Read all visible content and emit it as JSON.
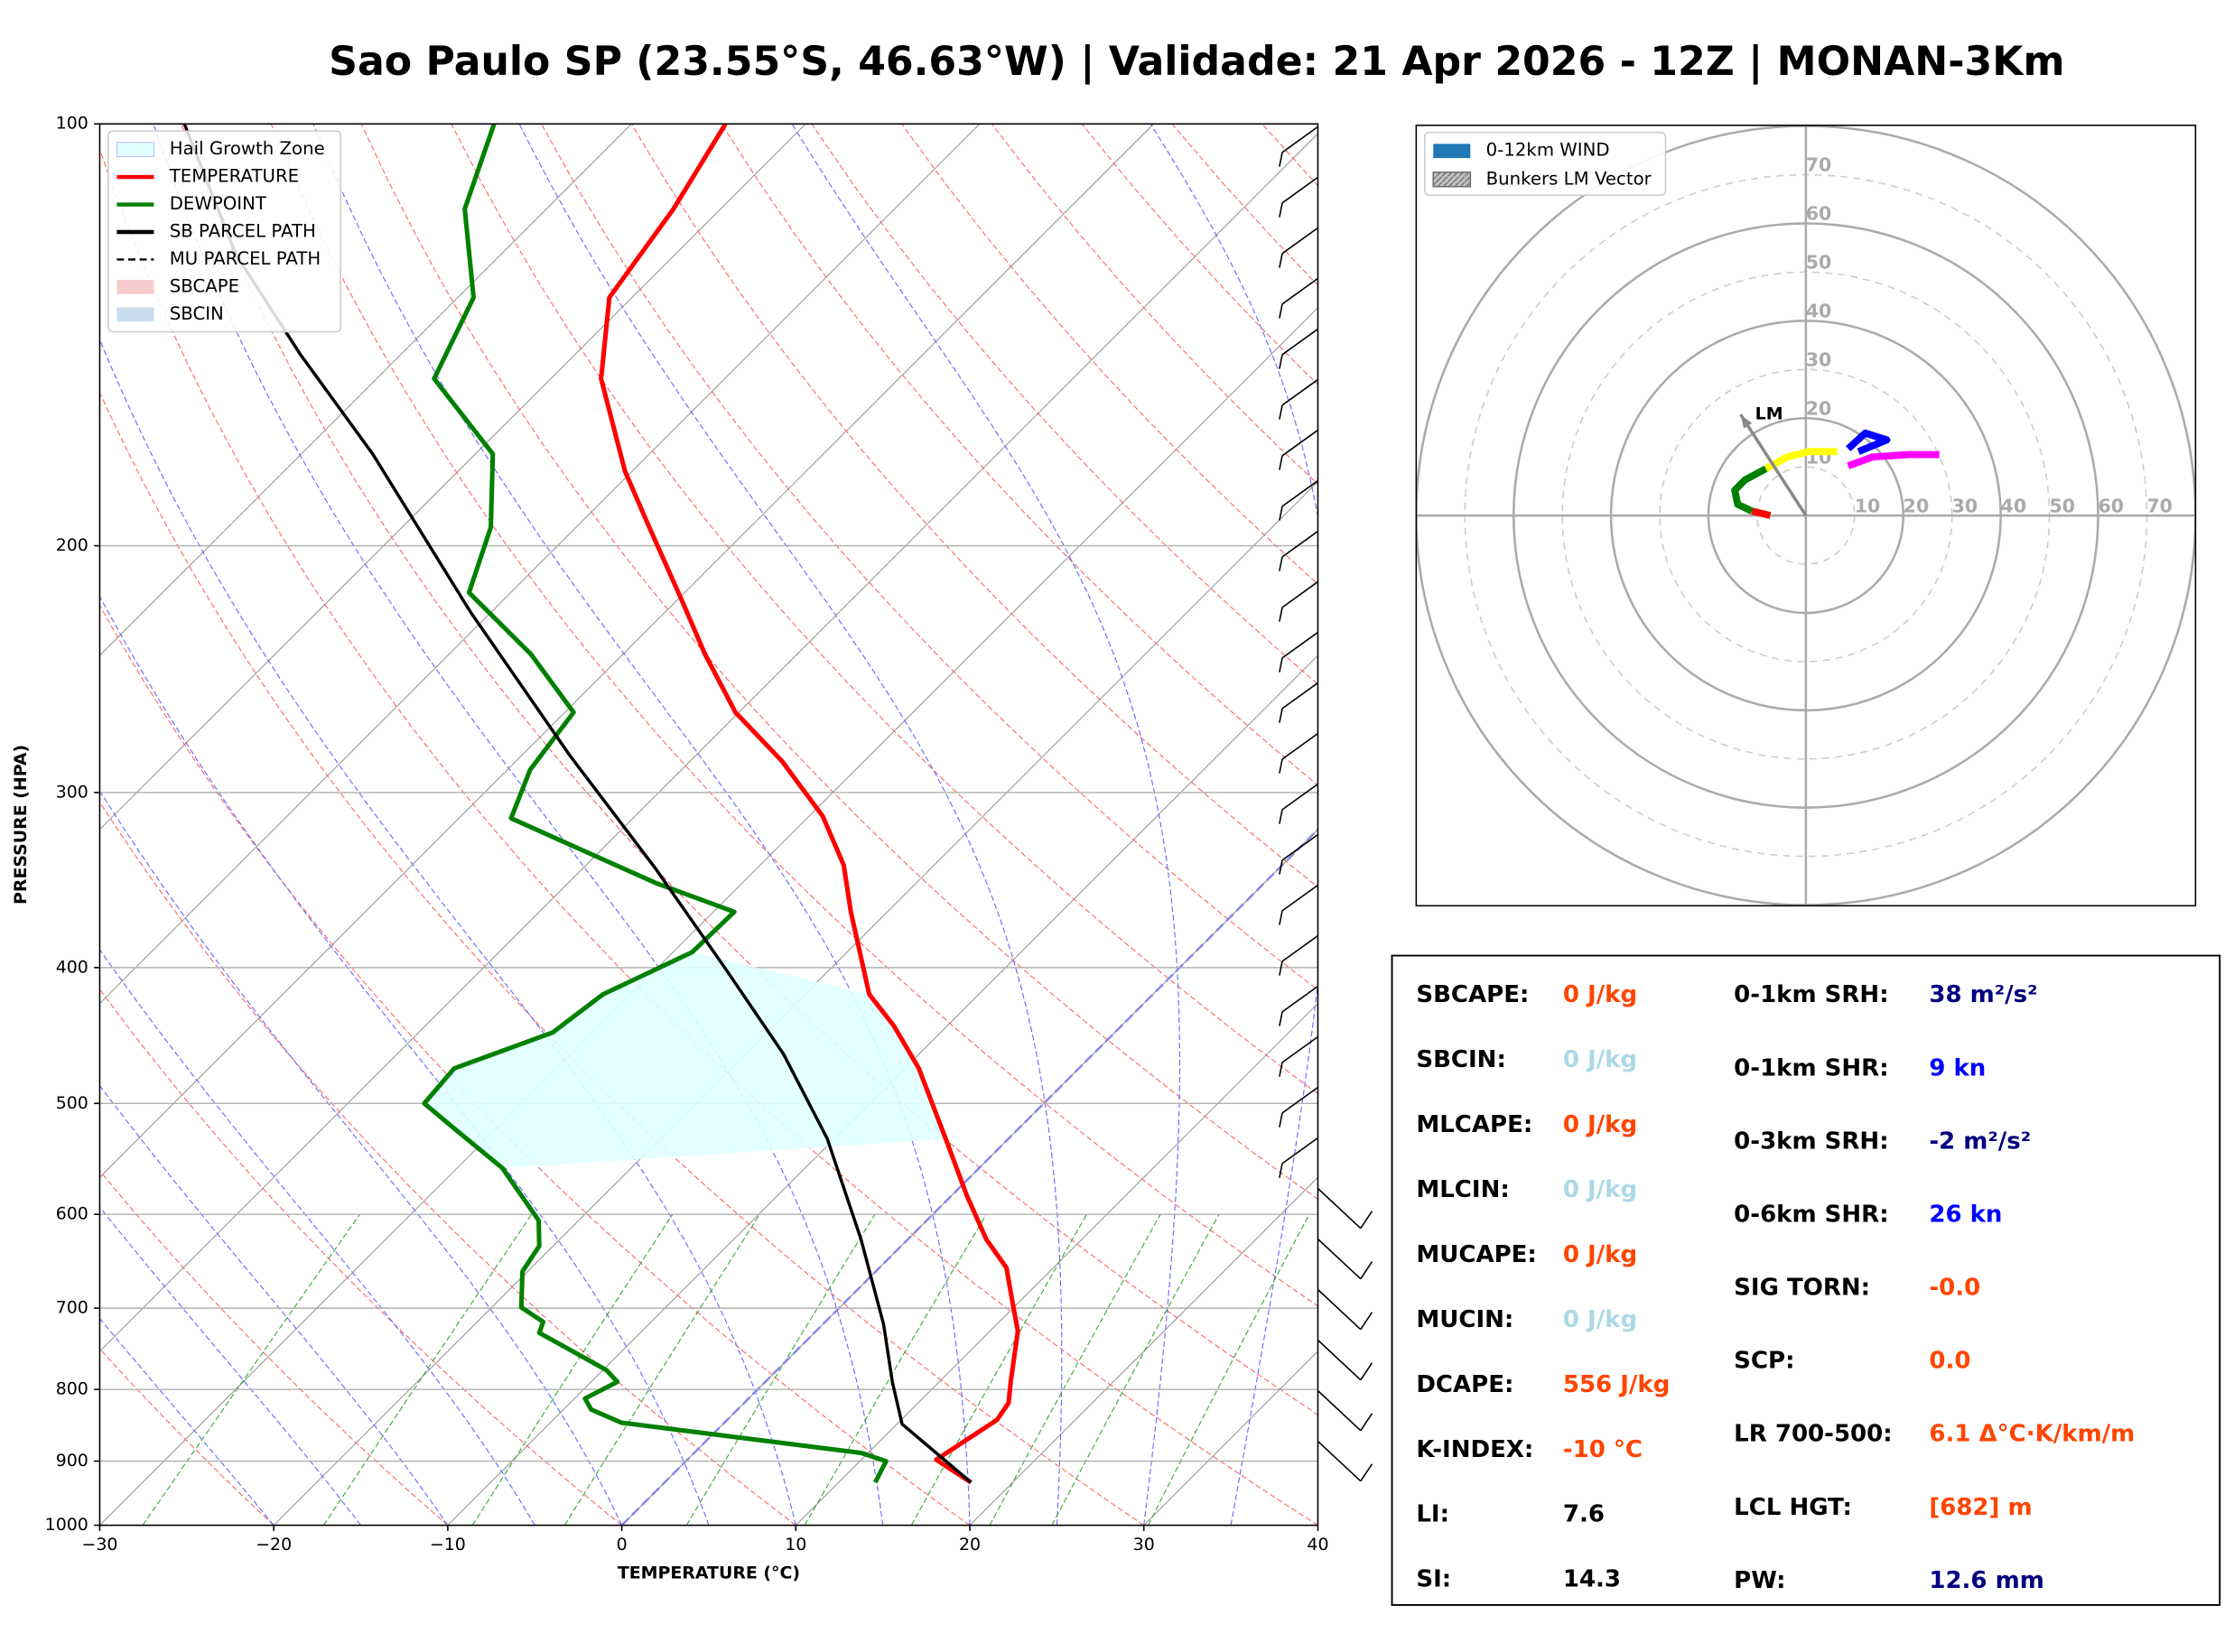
{
  "title": "Sao Paulo SP (23.55°S, 46.63°W) | Validade: 21 Apr 2026 - 12Z | MONAN-3Km",
  "chart_data": [
    {
      "type": "skewt",
      "xlabel": "TEMPERATURE (°C)",
      "ylabel": "PRESSURE (HPA)",
      "xlim": [
        -30,
        40
      ],
      "xticks": [
        {
          "value": -30,
          "label": "−30"
        },
        {
          "value": -20,
          "label": "−20"
        },
        {
          "value": -10,
          "label": "−10"
        },
        0,
        10,
        20,
        30,
        40
      ],
      "ylim": [
        1000,
        100
      ],
      "yticks": [
        100,
        200,
        300,
        400,
        500,
        600,
        700,
        800,
        900,
        1000
      ],
      "log_y": true,
      "grid": true,
      "legend": "upper left",
      "hail_growth_zone": {
        "name": "Hail Growth Zone",
        "color": "#e0ffff",
        "pressure": [
          569,
          367
        ]
      },
      "series": [
        {
          "name": "TEMPERATURE",
          "color": "#ff0000",
          "style": "solid",
          "pressure": [
            932,
            898,
            841,
            818,
            790,
            727,
            691,
            655,
            625,
            582,
            530,
            472,
            440,
            418,
            365,
            338,
            312,
            285,
            263,
            239,
            218,
            194,
            177,
            152,
            133,
            115,
            100
          ],
          "values": [
            17.6,
            14.3,
            15.5,
            15.2,
            14.1,
            11.6,
            9.5,
            7.3,
            4.5,
            0.9,
            -3.6,
            -9.2,
            -13.1,
            -16.3,
            -22.1,
            -25.2,
            -29.2,
            -34.7,
            -40.2,
            -45.3,
            -49.9,
            -55.8,
            -60.4,
            -67.1,
            -71.3,
            -72.7,
            -74.6
          ]
        },
        {
          "name": "DEWPOINT",
          "color": "#008000",
          "style": "solid",
          "pressure": [
            932,
            900,
            888,
            845,
            827,
            812,
            790,
            775,
            757,
            729,
            716,
            699,
            659,
            632,
            606,
            556,
            524,
            500,
            472,
            445,
            418,
            390,
            365,
            348,
            313,
            289,
            263,
            239,
            216,
            194,
            172,
            152,
            133,
            115,
            100
          ],
          "values": [
            12.1,
            11.5,
            9.6,
            -5.9,
            -8.4,
            -9.4,
            -8.5,
            -9.8,
            -12.1,
            -15.8,
            -16.2,
            -18.3,
            -20.3,
            -20.8,
            -22.3,
            -27.4,
            -32.0,
            -35.6,
            -35.9,
            -32.3,
            -31.6,
            -28.9,
            -28.8,
            -35.0,
            -47.0,
            -48.7,
            -49.5,
            -55.3,
            -62.4,
            -64.9,
            -69.0,
            -76.7,
            -79.1,
            -84.7,
            -87.9
          ]
        },
        {
          "name": "SB PARCEL PATH",
          "color": "#000000",
          "style": "solid",
          "pressure": [
            932,
            847,
            790,
            719,
            625,
            530,
            461,
            401,
            340,
            282,
            223,
            172,
            146,
            124,
            100
          ],
          "values": [
            17.6,
            10.3,
            7.3,
            3.5,
            -2.7,
            -10.4,
            -17.8,
            -26.0,
            -35.8,
            -47.3,
            -61.2,
            -75.9,
            -85.8,
            -95.2,
            -105.7
          ]
        }
      ],
      "legend_extra": [
        {
          "name": "MU PARCEL PATH",
          "color": "#000000",
          "style": "dashed"
        },
        {
          "name": "SBCAPE",
          "color": "#f8cccc",
          "style": "patch"
        },
        {
          "name": "SBCIN",
          "color": "#c8dcee",
          "style": "patch"
        }
      ]
    },
    {
      "type": "hodograph",
      "xlim": [
        -80,
        80
      ],
      "ylim": [
        -80,
        80
      ],
      "ring_ticks": [
        10,
        20,
        30,
        40,
        50,
        60,
        70
      ],
      "legend_items": [
        {
          "name": "0-12km WIND",
          "color": "#1f77b4"
        },
        {
          "name": "Bunkers LM Vector",
          "color": "#888888"
        }
      ],
      "lm_vector": {
        "label": "LM",
        "u": -13.4,
        "v": 20.7
      },
      "segments": [
        {
          "color": "#ff0000",
          "u": [
            -7.3,
            -11.1
          ],
          "v": [
            0,
            0.9
          ]
        },
        {
          "color": "#008000",
          "u": [
            -11.1,
            -14.0,
            -14.6,
            -12.5,
            -8.2
          ],
          "v": [
            0.9,
            2.3,
            5.2,
            7.3,
            9.6
          ]
        },
        {
          "color": "#ffff00",
          "u": [
            -8.2,
            -3.8,
            0.6,
            6.4
          ],
          "v": [
            9.6,
            12.0,
            13.1,
            13.1
          ]
        },
        {
          "color": "#0000ff",
          "u": [
            8.7,
            12.2,
            16.6,
            10.8
          ],
          "v": [
            13.7,
            16.9,
            15.5,
            13.1
          ]
        },
        {
          "color": "#ff00ff",
          "u": [
            8.7,
            13.7,
            21.0,
            27.4
          ],
          "v": [
            10.2,
            12.0,
            12.5,
            12.5
          ]
        }
      ]
    }
  ],
  "stats": {
    "left": [
      {
        "label": "SBCAPE:",
        "value": "0 J/kg",
        "color": "#ff4500"
      },
      {
        "label": "SBCIN:",
        "value": "0 J/kg",
        "color": "#add8e6"
      },
      {
        "label": "MLCAPE:",
        "value": "0 J/kg",
        "color": "#ff4500"
      },
      {
        "label": "MLCIN:",
        "value": "0 J/kg",
        "color": "#add8e6"
      },
      {
        "label": "MUCAPE:",
        "value": "0 J/kg",
        "color": "#ff4500"
      },
      {
        "label": "MUCIN:",
        "value": "0 J/kg",
        "color": "#add8e6"
      },
      {
        "label": "DCAPE:",
        "value": "556 J/kg",
        "color": "#ff4500"
      },
      {
        "label": "K-INDEX:",
        "value": "-10 °C",
        "color": "#ff4500"
      },
      {
        "label": "LI:",
        "value": "7.6",
        "color": "#000000"
      },
      {
        "label": "SI:",
        "value": "14.3",
        "color": "#000000"
      }
    ],
    "right": [
      {
        "label": "0-1km SRH:",
        "value": "38 m²/s²",
        "color": "#000080"
      },
      {
        "label": "0-1km SHR:",
        "value": "9 kn",
        "color": "#0000ff"
      },
      {
        "label": "0-3km SRH:",
        "value": "-2 m²/s²",
        "color": "#000080"
      },
      {
        "label": "0-6km SHR:",
        "value": "26 kn",
        "color": "#0000ff"
      },
      {
        "label": "SIG TORN:",
        "value": "-0.0",
        "color": "#ff4500"
      },
      {
        "label": "SCP:",
        "value": "0.0",
        "color": "#ff4500"
      },
      {
        "label": "LR 700-500:",
        "value": "6.1 Δ°C·K/km/m",
        "color": "#ff4500"
      },
      {
        "label": "LCL HGT:",
        "value": "[682] m",
        "color": "#ff4500"
      },
      {
        "label": "PW:",
        "value": "12.6 mm",
        "color": "#000080"
      }
    ]
  }
}
